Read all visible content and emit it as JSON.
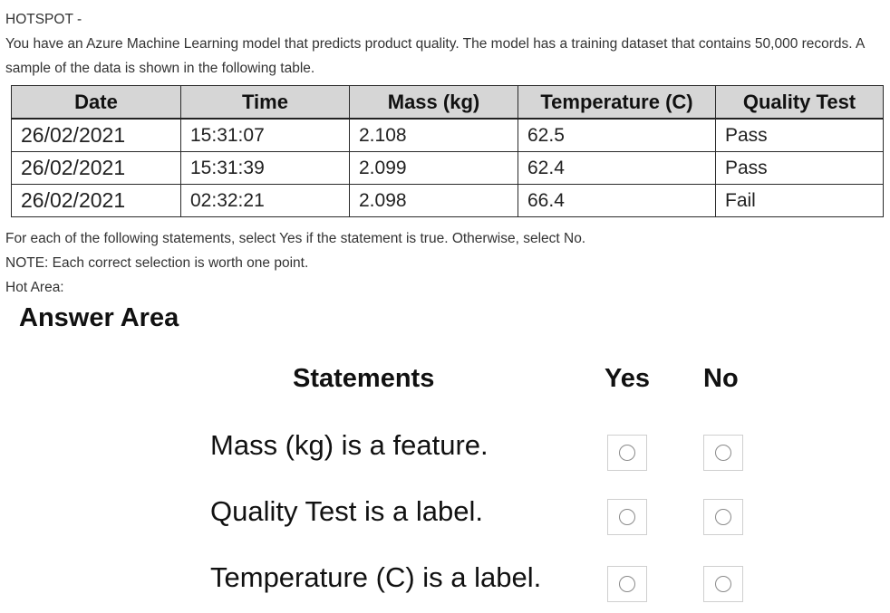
{
  "intro": {
    "line1": "HOTSPOT -",
    "line2": "You have an Azure Machine Learning model that predicts product quality. The model has a training dataset that contains 50,000 records. A sample of the data is shown in the following table."
  },
  "table": {
    "headers": [
      "Date",
      "Time",
      "Mass (kg)",
      "Temperature (C)",
      "Quality Test"
    ],
    "rows": [
      [
        "26/02/2021",
        "15:31:07",
        "2.108",
        "62.5",
        "Pass"
      ],
      [
        "26/02/2021",
        "15:31:39",
        "2.099",
        "62.4",
        "Pass"
      ],
      [
        "26/02/2021",
        "02:32:21",
        "2.098",
        "66.4",
        "Fail"
      ]
    ]
  },
  "instructions": {
    "line1": "For each of the following statements, select Yes if the statement is true. Otherwise, select No.",
    "line2": "NOTE: Each correct selection is worth one point.",
    "line3": "Hot Area:"
  },
  "answer_area": {
    "title": "Answer Area",
    "col_statements": "Statements",
    "col_yes": "Yes",
    "col_no": "No",
    "statements": [
      "Mass (kg) is a feature.",
      "Quality Test is a label.",
      "Temperature (C) is a label."
    ]
  }
}
